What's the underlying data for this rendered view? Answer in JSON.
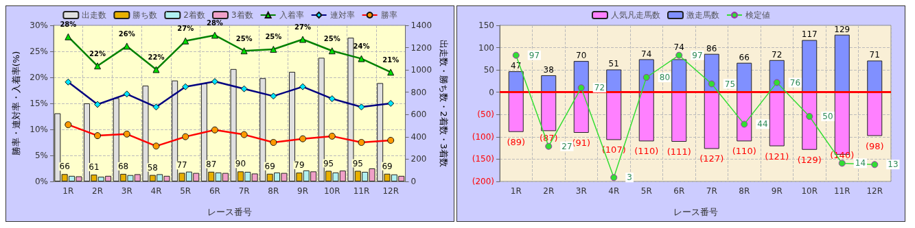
{
  "chart_data": [
    {
      "type": "bar",
      "xlabel": "レース番号",
      "ylabel": "勝率・連対率・入着率(%)",
      "y2label": "出走数・勝ち数・2着数・3着数",
      "categories": [
        "1R",
        "2R",
        "3R",
        "4R",
        "5R",
        "6R",
        "7R",
        "8R",
        "9R",
        "10R",
        "11R",
        "12R"
      ],
      "series": [
        {
          "name": "出走数",
          "color": "#e0e0e0",
          "axis": "y2",
          "values": [
            611,
            700,
            747,
            859,
            905,
            879,
            1008,
            926,
            983,
            1109,
            1289,
            882
          ]
        },
        {
          "name": "勝ち数",
          "color": "#e8b000",
          "axis": "y2",
          "data_labels": true,
          "values": [
            66,
            61,
            68,
            58,
            77,
            87,
            90,
            69,
            79,
            95,
            95,
            69
          ]
        },
        {
          "name": "2着数",
          "color": "#b0f0f0",
          "axis": "y2",
          "values": [
            50,
            42,
            57,
            65,
            88,
            80,
            86,
            80,
            99,
            80,
            86,
            63
          ]
        },
        {
          "name": "3着数",
          "color": "#f0a0c8",
          "axis": "y2",
          "values": [
            46,
            50,
            65,
            50,
            76,
            76,
            71,
            76,
            90,
            97,
            117,
            50
          ]
        },
        {
          "name": "入着率",
          "type": "line",
          "color": "#008000",
          "marker": "triangle",
          "values": [
            27.8,
            22.2,
            26.0,
            21.5,
            27.0,
            28.1,
            25.1,
            25.4,
            27.3,
            25.1,
            23.6,
            21.0
          ],
          "value_labels": [
            "28%",
            "22%",
            "26%",
            "22%",
            "27%",
            "28%",
            "25%",
            "25%",
            "27%",
            "25%",
            "24%",
            "21%"
          ]
        },
        {
          "name": "連対率",
          "type": "line",
          "color": "#000080",
          "marker": "diamond",
          "values": [
            19.1,
            14.8,
            16.8,
            14.3,
            18.2,
            19.2,
            17.8,
            16.4,
            18.2,
            15.9,
            14.3,
            15.0
          ]
        },
        {
          "name": "勝率",
          "type": "line",
          "color": "#ff0000",
          "marker": "circle",
          "values": [
            10.9,
            8.8,
            9.1,
            6.8,
            8.6,
            9.9,
            9.0,
            7.5,
            8.2,
            8.7,
            7.5,
            7.9
          ]
        }
      ],
      "ylim": [
        0,
        30
      ],
      "yticks": [
        {
          "value": 0,
          "label": "0%"
        },
        {
          "value": 5,
          "label": "5%"
        },
        {
          "value": 10,
          "label": "10%"
        },
        {
          "value": 15,
          "label": "15%"
        },
        {
          "value": 20,
          "label": "20%"
        },
        {
          "value": 25,
          "label": "25%"
        },
        {
          "value": 30,
          "label": "30%"
        }
      ],
      "y2lim": [
        0,
        1400
      ],
      "y2ticks": [
        0,
        200,
        400,
        600,
        800,
        1000,
        1200,
        1400
      ],
      "grid": true,
      "legend": "top"
    },
    {
      "type": "bar",
      "xlabel": "レース番号",
      "stacked": true,
      "categories": [
        "1R",
        "2R",
        "3R",
        "4R",
        "5R",
        "6R",
        "7R",
        "8R",
        "9R",
        "10R",
        "11R",
        "12R"
      ],
      "series": [
        {
          "name": "人気凡走馬数",
          "color": "#ff80ff",
          "values": [
            -89,
            -87,
            -91,
            -107,
            -110,
            -111,
            -127,
            -110,
            -121,
            -129,
            -140,
            -98
          ],
          "value_labels": [
            "(89)",
            "(87)",
            "(91)",
            "(107)",
            "(110)",
            "(111)",
            "(127)",
            "(110)",
            "(121)",
            "(129)",
            "(140)",
            "(98)"
          ]
        },
        {
          "name": "激走馬数",
          "color": "#8090ff",
          "values": [
            47,
            38,
            70,
            51,
            74,
            74,
            86,
            66,
            72,
            117,
            129,
            71
          ],
          "data_labels": true
        },
        {
          "name": "検定値",
          "type": "line",
          "color": "#33dd33",
          "marker": "circle",
          "axis": "y2",
          "data_labels": true,
          "values": [
            97,
            27,
            72,
            3,
            80,
            97,
            75,
            44,
            76,
            50,
            14,
            13
          ]
        }
      ],
      "ylim": [
        -200,
        150
      ],
      "yticks": [
        {
          "value": -200,
          "label": "(200)"
        },
        {
          "value": -150,
          "label": "(150)"
        },
        {
          "value": -100,
          "label": "(100)"
        },
        {
          "value": -50,
          "label": "(50)"
        },
        0,
        50,
        100,
        150
      ],
      "y2lim": [
        0,
        120
      ],
      "ref_lines": [
        {
          "axis": "y",
          "value": 0,
          "color": "#ff0000"
        }
      ],
      "grid": true,
      "legend": "top"
    }
  ]
}
